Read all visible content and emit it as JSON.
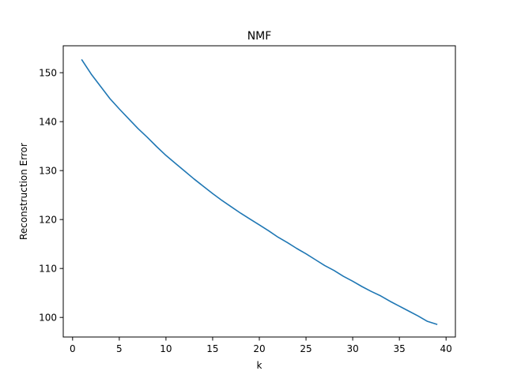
{
  "chart_data": {
    "type": "line",
    "title": "NMF",
    "xlabel": "k",
    "ylabel": "Reconstruction Error",
    "xlim": [
      -1,
      41
    ],
    "ylim": [
      96,
      155.5
    ],
    "grid": false,
    "xticks": [
      0,
      5,
      10,
      15,
      20,
      25,
      30,
      35,
      40
    ],
    "yticks": [
      100,
      110,
      120,
      130,
      140,
      150
    ],
    "series": [
      {
        "color": "#1f77b4",
        "x": [
          1,
          2,
          3,
          4,
          5,
          6,
          7,
          8,
          9,
          10,
          11,
          12,
          13,
          14,
          15,
          16,
          17,
          18,
          19,
          20,
          21,
          22,
          23,
          24,
          25,
          26,
          27,
          28,
          29,
          30,
          31,
          32,
          33,
          34,
          35,
          36,
          37,
          38,
          39
        ],
        "values": [
          152.6,
          149.7,
          147.2,
          144.7,
          142.6,
          140.6,
          138.6,
          136.8,
          134.9,
          133.1,
          131.5,
          129.9,
          128.3,
          126.8,
          125.3,
          123.9,
          122.6,
          121.3,
          120.1,
          118.9,
          117.7,
          116.4,
          115.3,
          114.1,
          113.0,
          111.8,
          110.6,
          109.6,
          108.4,
          107.4,
          106.3,
          105.3,
          104.4,
          103.3,
          102.3,
          101.3,
          100.3,
          99.2,
          98.6
        ]
      }
    ]
  }
}
